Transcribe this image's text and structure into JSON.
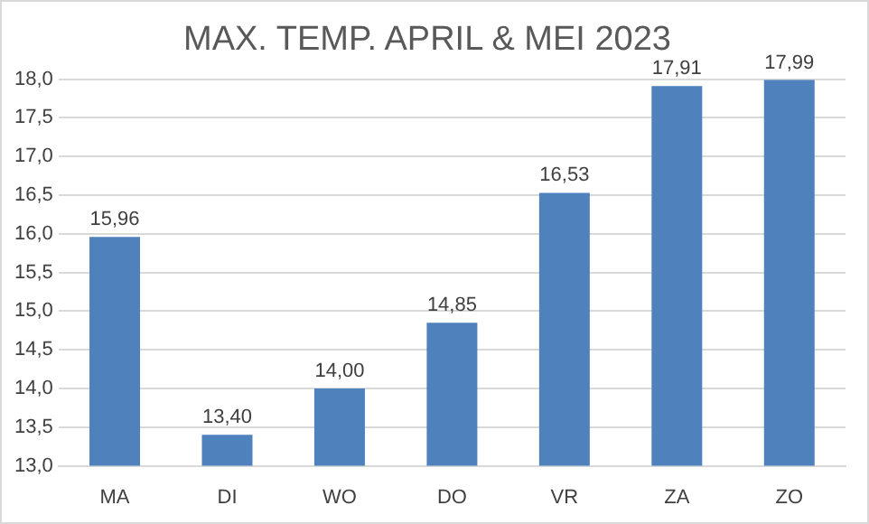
{
  "chart_data": {
    "type": "bar",
    "title": "MAX. TEMP. APRIL & MEI 2023",
    "categories": [
      "MA",
      "DI",
      "WO",
      "DO",
      "VR",
      "ZA",
      "ZO"
    ],
    "values": [
      15.96,
      13.4,
      14.0,
      14.85,
      16.53,
      17.91,
      17.99
    ],
    "value_labels": [
      "15,96",
      "13,40",
      "14,00",
      "14,85",
      "16,53",
      "17,91",
      "17,99"
    ],
    "color": "#4f81bd",
    "ylim": [
      13,
      18
    ],
    "yticks": [
      {
        "value": 13,
        "label": "13,0"
      },
      {
        "value": 13.5,
        "label": "13,5"
      },
      {
        "value": 14,
        "label": "14,0"
      },
      {
        "value": 14.5,
        "label": "14,5"
      },
      {
        "value": 15,
        "label": "15,0"
      },
      {
        "value": 15.5,
        "label": "15,5"
      },
      {
        "value": 16,
        "label": "16,0"
      },
      {
        "value": 16.5,
        "label": "16,5"
      },
      {
        "value": 17,
        "label": "17,0"
      },
      {
        "value": 17.5,
        "label": "17,5"
      },
      {
        "value": 18,
        "label": "18,0"
      }
    ],
    "grid": "y"
  }
}
